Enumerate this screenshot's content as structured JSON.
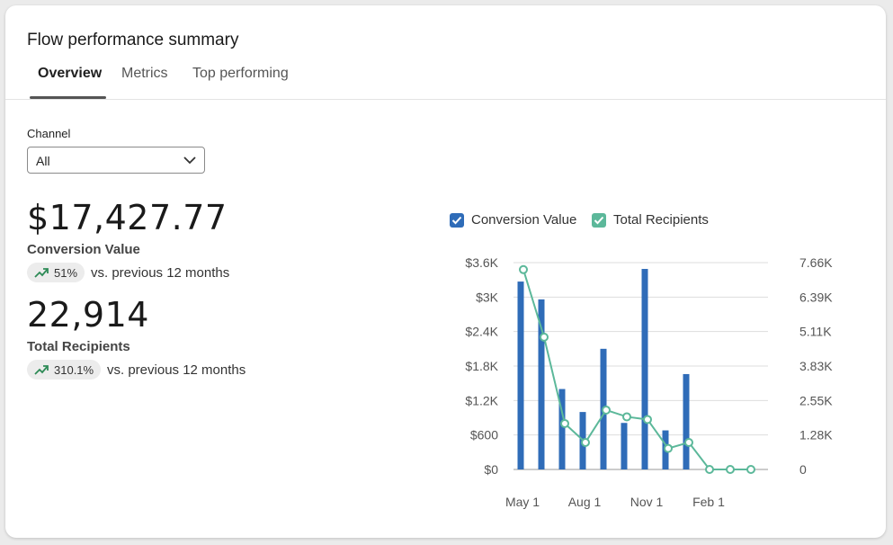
{
  "title": "Flow performance summary",
  "tabs": [
    {
      "label": "Overview",
      "active": true
    },
    {
      "label": "Metrics",
      "active": false
    },
    {
      "label": "Top performing",
      "active": false
    }
  ],
  "filter": {
    "label": "Channel",
    "value": "All"
  },
  "metrics": [
    {
      "value": "$17,427.77",
      "label": "Conversion Value",
      "change": "51%",
      "comparison": "vs. previous 12 months",
      "trend_icon": "trend-up-icon"
    },
    {
      "value": "22,914",
      "label": "Total Recipients",
      "change": "310.1%",
      "comparison": "vs. previous 12 months",
      "trend_icon": "trend-up-icon"
    }
  ],
  "legend": [
    {
      "label": "Conversion Value",
      "color": "#2f6cb8",
      "checked": true
    },
    {
      "label": "Total Recipients",
      "color": "#5cb89a",
      "checked": true
    }
  ],
  "chart_data": {
    "type": "bar+line",
    "x_tick_labels": [
      "May 1",
      "Aug 1",
      "Nov 1",
      "Feb 1"
    ],
    "left_axis": {
      "ticks": [
        "$0",
        "$600",
        "$1.2K",
        "$1.8K",
        "$2.4K",
        "$3K",
        "$3.6K"
      ],
      "ylim": [
        0,
        3600
      ]
    },
    "right_axis": {
      "ticks": [
        "0",
        "1.28K",
        "2.55K",
        "3.83K",
        "5.11K",
        "6.39K",
        "7.66K"
      ],
      "ylim": [
        0,
        7660
      ]
    },
    "grid": true,
    "legend_position": "top",
    "series": [
      {
        "name": "Conversion Value",
        "type": "bar",
        "axis": "left",
        "color": "#2f6cb8",
        "values": [
          3270,
          2960,
          1400,
          1000,
          2100,
          810,
          3490,
          680,
          1660,
          0,
          0,
          0
        ]
      },
      {
        "name": "Total Recipients",
        "type": "line",
        "axis": "right",
        "color": "#5cb89a",
        "values": [
          7400,
          4900,
          1700,
          1000,
          2200,
          1950,
          1850,
          780,
          1000,
          0,
          0,
          0
        ]
      }
    ]
  }
}
